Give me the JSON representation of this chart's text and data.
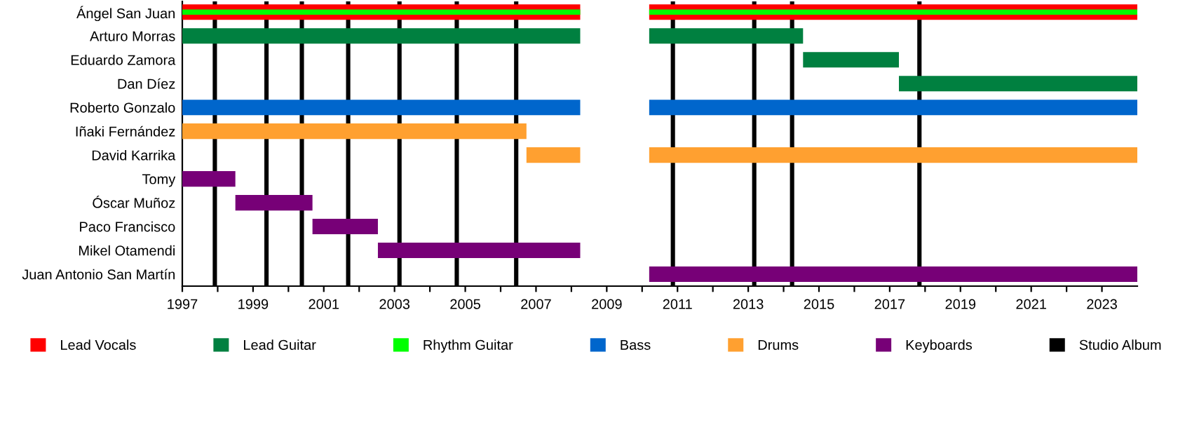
{
  "chart_data": {
    "type": "bar",
    "orientation": "horizontal",
    "categories": [
      "Ángel San Juan",
      "Arturo Morras",
      "Eduardo Zamora",
      "Dan Díez",
      "Roberto Gonzalo",
      "Iñaki Fernández",
      "David Karrika",
      "Tomy",
      "Óscar Muñoz",
      "Paco Francisco",
      "Mikel Otamendi",
      "Juan Antonio San Martín"
    ],
    "series": [
      {
        "name": "Lead Vocals",
        "color": "#ff0000",
        "base": [
          1997,
          null,
          null,
          null,
          null,
          null,
          null,
          null,
          null,
          null,
          null,
          null
        ],
        "values": [
          11.25,
          null,
          null,
          null,
          null,
          null,
          null,
          null,
          null,
          null,
          null,
          null
        ]
      },
      {
        "name": "Lead Guitar",
        "color": "#008040",
        "base": [
          null,
          1997,
          null,
          null,
          null,
          null,
          null,
          null,
          null,
          null,
          null,
          null
        ],
        "values": [
          null,
          11.25,
          null,
          null,
          null,
          null,
          null,
          null,
          null,
          null,
          null,
          null
        ]
      },
      {
        "name": "Rhythm Guitar",
        "color": "#00ff00",
        "base": [
          1997,
          null,
          null,
          null,
          null,
          null,
          null,
          null,
          null,
          null,
          null,
          null
        ],
        "values": [
          11.25,
          null,
          null,
          null,
          null,
          null,
          null,
          null,
          null,
          null,
          null,
          null
        ]
      },
      {
        "name": "Bass",
        "color": "#0066cc",
        "base": [
          null,
          null,
          null,
          null,
          1997,
          null,
          null,
          null,
          null,
          null,
          null,
          null
        ],
        "values": [
          null,
          null,
          null,
          null,
          11.25,
          null,
          null,
          null,
          null,
          null,
          null,
          null
        ]
      },
      {
        "name": "Drums",
        "color": "#ffa030",
        "base": [
          null,
          null,
          null,
          null,
          null,
          1997,
          2006.73,
          null,
          null,
          null,
          null,
          null
        ],
        "values": [
          null,
          null,
          null,
          null,
          null,
          9.73,
          1.52,
          null,
          null,
          null,
          null,
          null
        ]
      },
      {
        "name": "Keyboards",
        "color": "#770077",
        "base": [
          null,
          null,
          null,
          null,
          null,
          null,
          null,
          1997,
          1998.5,
          2000.68,
          2002.53,
          null
        ],
        "values": [
          null,
          null,
          null,
          null,
          null,
          null,
          null,
          1.5,
          2.18,
          1.85,
          5.72,
          null
        ]
      },
      {
        "color": "#ff0000",
        "base": [
          2010.2,
          null,
          null,
          null,
          null,
          null,
          null,
          null,
          null,
          null,
          null,
          null
        ],
        "values": [
          13.8,
          null,
          null,
          null,
          null,
          null,
          null,
          null,
          null,
          null,
          null,
          null
        ]
      },
      {
        "color": "#00ff00",
        "base": [
          2010.2,
          null,
          null,
          null,
          null,
          null,
          null,
          null,
          null,
          null,
          null,
          null
        ],
        "values": [
          13.8,
          null,
          null,
          null,
          null,
          null,
          null,
          null,
          null,
          null,
          null,
          null
        ]
      },
      {
        "color": "#008040",
        "base": [
          null,
          2010.2,
          2014.55,
          2017.26,
          null,
          null,
          null,
          null,
          null,
          null,
          null,
          null
        ],
        "values": [
          null,
          4.35,
          2.71,
          6.74,
          null,
          null,
          null,
          null,
          null,
          null,
          null,
          null
        ]
      },
      {
        "color": "#0066cc",
        "base": [
          null,
          null,
          null,
          null,
          2010.2,
          null,
          null,
          null,
          null,
          null,
          null,
          null
        ],
        "values": [
          null,
          null,
          null,
          null,
          13.8,
          null,
          null,
          null,
          null,
          null,
          null,
          null
        ]
      },
      {
        "color": "#ffa030",
        "base": [
          null,
          null,
          null,
          null,
          null,
          null,
          2010.2,
          null,
          null,
          null,
          null,
          null
        ],
        "values": [
          null,
          null,
          null,
          null,
          null,
          null,
          13.8,
          null,
          null,
          null,
          null,
          null
        ]
      },
      {
        "color": "#770077",
        "base": [
          null,
          null,
          null,
          null,
          null,
          null,
          null,
          null,
          null,
          null,
          null,
          2010.2
        ],
        "values": [
          null,
          null,
          null,
          null,
          null,
          null,
          null,
          null,
          null,
          null,
          null,
          13.8
        ]
      }
    ],
    "xlim": [
      1997,
      2024
    ],
    "xticks": [
      1997,
      {
        "value": 1998,
        "label": null
      },
      1999,
      {
        "value": 2000,
        "label": null
      },
      2001,
      {
        "value": 2002,
        "label": null
      },
      2003,
      {
        "value": 2004,
        "label": null
      },
      2005,
      {
        "value": 2006,
        "label": null
      },
      2007,
      {
        "value": 2008,
        "label": null
      },
      2009,
      {
        "value": 2010,
        "label": null
      },
      2011,
      {
        "value": 2012,
        "label": null
      },
      2013,
      {
        "value": 2014,
        "label": null
      },
      2015,
      {
        "value": 2016,
        "label": null
      },
      2017,
      {
        "value": 2018,
        "label": null
      },
      2019,
      {
        "value": 2020,
        "label": null
      },
      2021,
      {
        "value": 2022,
        "label": null
      },
      2023
    ],
    "ref_lines": [
      {
        "axis": "x",
        "value": 1997.92,
        "label": "Studio Album",
        "color": "#000000"
      },
      {
        "axis": "x",
        "value": 1999.38,
        "color": "#000000"
      },
      {
        "axis": "x",
        "value": 2000.38,
        "color": "#000000"
      },
      {
        "axis": "x",
        "value": 2001.69,
        "color": "#000000"
      },
      {
        "axis": "x",
        "value": 2003.14,
        "color": "#000000"
      },
      {
        "axis": "x",
        "value": 2004.76,
        "color": "#000000"
      },
      {
        "axis": "x",
        "value": 2006.44,
        "color": "#000000"
      },
      {
        "axis": "x",
        "value": 2010.87,
        "color": "#000000"
      },
      {
        "axis": "x",
        "value": 2013.17,
        "color": "#000000"
      },
      {
        "axis": "x",
        "value": 2014.24,
        "color": "#000000"
      },
      {
        "axis": "x",
        "value": 2017.84,
        "color": "#000000"
      }
    ],
    "grid": false,
    "legend": "bottom"
  }
}
